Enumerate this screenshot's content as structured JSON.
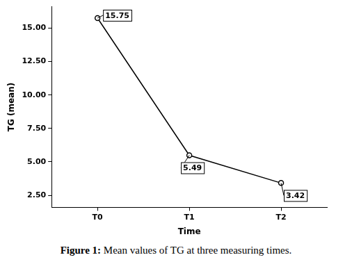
{
  "chart_data": {
    "type": "line",
    "caption": "Figure 1: Mean values of TG at three measuring times.",
    "x_label": "Time",
    "y_label": "TG (mean)",
    "categories": [
      "T0",
      "T1",
      "T2"
    ],
    "values": [
      15.75,
      5.49,
      3.42
    ],
    "color": "#000000",
    "marker": "circle",
    "line_style": "solid",
    "ylim": [
      1.6,
      16.6
    ],
    "yticks": [
      {
        "value": 2.5,
        "label": "2.50"
      },
      {
        "value": 5,
        "label": "5.00"
      },
      {
        "value": 7.5,
        "label": "7.50"
      },
      {
        "value": 10,
        "label": "10.00"
      },
      {
        "value": 12.5,
        "label": "12.50"
      },
      {
        "value": 15,
        "label": "15.00"
      }
    ],
    "grid": false,
    "data_labels": true
  }
}
